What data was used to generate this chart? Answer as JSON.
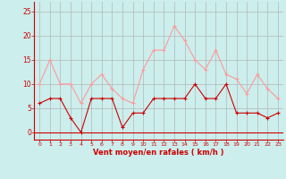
{
  "x": [
    0,
    1,
    2,
    3,
    4,
    5,
    6,
    7,
    8,
    9,
    10,
    11,
    12,
    13,
    14,
    15,
    16,
    17,
    18,
    19,
    20,
    21,
    22,
    23
  ],
  "wind_avg": [
    6,
    7,
    7,
    3,
    0,
    7,
    7,
    7,
    1,
    4,
    4,
    7,
    7,
    7,
    7,
    10,
    7,
    7,
    10,
    4,
    4,
    4,
    3,
    4
  ],
  "wind_gust": [
    10,
    15,
    10,
    10,
    6,
    10,
    12,
    9,
    7,
    6,
    13,
    17,
    17,
    22,
    19,
    15,
    13,
    17,
    12,
    11,
    8,
    12,
    9,
    7
  ],
  "bg_color": "#cceeed",
  "grid_color": "#aaaaaa",
  "line_avg_color": "#cc0000",
  "line_gust_color": "#ff9999",
  "xlabel": "Vent moyen/en rafales ( km/h )",
  "xlabel_color": "#cc0000",
  "yticks": [
    0,
    5,
    10,
    15,
    20,
    25
  ],
  "ylim": [
    -1.5,
    27
  ],
  "xlim": [
    -0.5,
    23.5
  ],
  "spine_color": "#cc0000",
  "tick_color": "#cc0000",
  "figsize": [
    3.2,
    2.0
  ],
  "dpi": 100
}
